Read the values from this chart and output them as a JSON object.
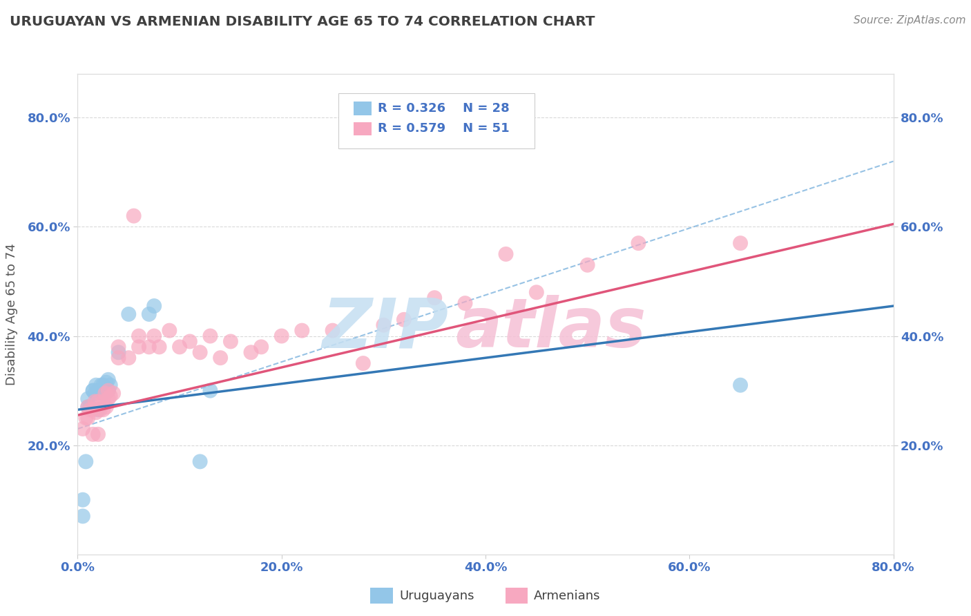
{
  "title": "URUGUAYAN VS ARMENIAN DISABILITY AGE 65 TO 74 CORRELATION CHART",
  "source_text": "Source: ZipAtlas.com",
  "ylabel": "Disability Age 65 to 74",
  "xlim": [
    0.0,
    0.8
  ],
  "ylim": [
    0.0,
    0.88
  ],
  "xtick_labels": [
    "0.0%",
    "20.0%",
    "40.0%",
    "60.0%",
    "80.0%"
  ],
  "xtick_vals": [
    0.0,
    0.2,
    0.4,
    0.6,
    0.8
  ],
  "ytick_labels": [
    "20.0%",
    "40.0%",
    "60.0%",
    "80.0%"
  ],
  "ytick_vals": [
    0.2,
    0.4,
    0.6,
    0.8
  ],
  "uruguayan_color": "#93c6e8",
  "armenian_color": "#f7a8c0",
  "uruguayan_line_color": "#3478b5",
  "armenian_line_color": "#e0557a",
  "diag_line_color": "#85b8e0",
  "legend_text_color": "#4472c4",
  "tick_color": "#4472c4",
  "grid_color": "#d0d0d0",
  "title_color": "#404040",
  "source_color": "#888888",
  "ylabel_color": "#555555",
  "watermark_zip_color": "#c5dff2",
  "watermark_atlas_color": "#f5c0d5",
  "background_color": "#ffffff",
  "legend_box_color": "#ffffff",
  "legend_border_color": "#cccccc",
  "uruguayan_x": [
    0.005,
    0.008,
    0.01,
    0.01,
    0.012,
    0.015,
    0.015,
    0.017,
    0.018,
    0.02,
    0.02,
    0.022,
    0.023,
    0.025,
    0.025,
    0.027,
    0.028,
    0.03,
    0.03,
    0.032,
    0.04,
    0.05,
    0.07,
    0.075,
    0.12,
    0.13,
    0.65,
    0.005
  ],
  "uruguayan_y": [
    0.1,
    0.17,
    0.27,
    0.285,
    0.27,
    0.3,
    0.3,
    0.295,
    0.31,
    0.265,
    0.3,
    0.3,
    0.31,
    0.295,
    0.31,
    0.3,
    0.315,
    0.3,
    0.32,
    0.31,
    0.37,
    0.44,
    0.44,
    0.455,
    0.17,
    0.3,
    0.31,
    0.07
  ],
  "armenian_x": [
    0.005,
    0.008,
    0.01,
    0.01,
    0.012,
    0.015,
    0.015,
    0.017,
    0.018,
    0.02,
    0.02,
    0.022,
    0.025,
    0.025,
    0.027,
    0.028,
    0.03,
    0.03,
    0.032,
    0.035,
    0.04,
    0.04,
    0.05,
    0.055,
    0.06,
    0.06,
    0.07,
    0.075,
    0.08,
    0.09,
    0.1,
    0.11,
    0.12,
    0.13,
    0.14,
    0.15,
    0.17,
    0.18,
    0.2,
    0.22,
    0.25,
    0.28,
    0.3,
    0.32,
    0.35,
    0.38,
    0.42,
    0.45,
    0.5,
    0.55,
    0.65
  ],
  "armenian_y": [
    0.23,
    0.25,
    0.25,
    0.27,
    0.265,
    0.22,
    0.265,
    0.28,
    0.26,
    0.22,
    0.28,
    0.265,
    0.28,
    0.265,
    0.295,
    0.27,
    0.285,
    0.3,
    0.29,
    0.295,
    0.36,
    0.38,
    0.36,
    0.62,
    0.38,
    0.4,
    0.38,
    0.4,
    0.38,
    0.41,
    0.38,
    0.39,
    0.37,
    0.4,
    0.36,
    0.39,
    0.37,
    0.38,
    0.4,
    0.41,
    0.41,
    0.35,
    0.42,
    0.43,
    0.47,
    0.46,
    0.55,
    0.48,
    0.53,
    0.57,
    0.57
  ],
  "diag_line_x": [
    0.0,
    0.8
  ],
  "diag_line_y": [
    0.23,
    0.72
  ],
  "blue_line_x": [
    0.0,
    0.8
  ],
  "blue_line_y": [
    0.265,
    0.455
  ],
  "pink_line_x": [
    0.0,
    0.8
  ],
  "pink_line_y": [
    0.255,
    0.605
  ]
}
